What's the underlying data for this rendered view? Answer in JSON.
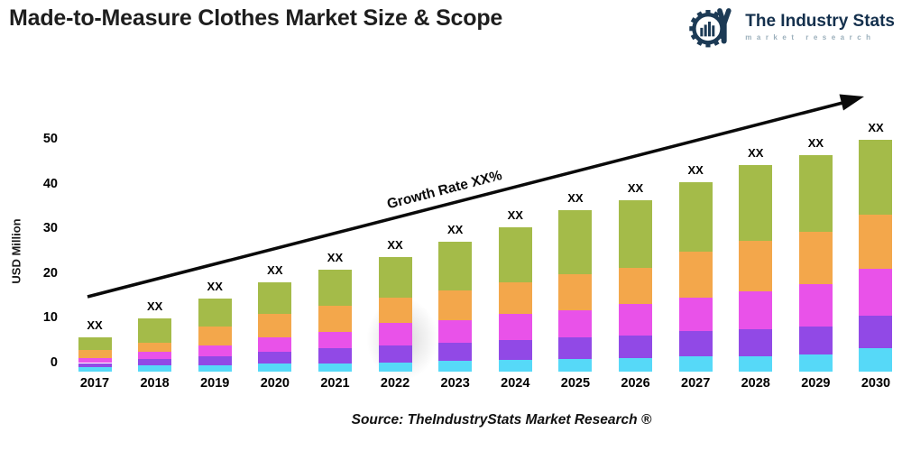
{
  "header": {
    "title": "Made-to-Measure Clothes Market Size & Scope"
  },
  "logo": {
    "name": "The Industry Stats",
    "tagline": "market research",
    "brand_color": "#1c3a55",
    "tagline_color": "#9cb0bc"
  },
  "chart_data": {
    "type": "bar",
    "stacked": true,
    "title": "Made-to-Measure Clothes Market Size & Scope",
    "ylabel": "USD Million",
    "yticks": [
      0,
      10,
      20,
      30,
      40,
      50
    ],
    "ylim": [
      -2,
      53
    ],
    "grid": false,
    "legend": "none",
    "categories": [
      "2017",
      "2018",
      "2019",
      "2020",
      "2021",
      "2022",
      "2023",
      "2024",
      "2025",
      "2026",
      "2027",
      "2028",
      "2029",
      "2030"
    ],
    "bar_labels": [
      "XX",
      "XX",
      "XX",
      "XX",
      "XX",
      "XX",
      "XX",
      "XX",
      "XX",
      "XX",
      "XX",
      "XX",
      "XX",
      "XX"
    ],
    "bar_base": -1.8,
    "bar_tops_usd_million": [
      5.8,
      10.0,
      14.5,
      18.1,
      21.0,
      23.8,
      27.2,
      30.4,
      34.3,
      36.5,
      40.5,
      44.4,
      46.6,
      50.0
    ],
    "series": [
      {
        "name": "segment-1-bottom",
        "color": "#56d9f8",
        "values": [
          1.0,
          1.4,
          1.3,
          1.8,
          1.8,
          2.0,
          2.4,
          2.6,
          2.9,
          3.0,
          3.4,
          3.4,
          3.8,
          5.2
        ]
      },
      {
        "name": "segment-2",
        "color": "#9149e6",
        "values": [
          0.9,
          1.5,
          2.1,
          2.6,
          3.4,
          3.8,
          4.0,
          4.4,
          4.7,
          5.1,
          5.7,
          6.1,
          6.3,
          7.3
        ]
      },
      {
        "name": "segment-3",
        "color": "#e952e9",
        "values": [
          1.2,
          1.6,
          2.4,
          3.2,
          3.7,
          5.1,
          5.1,
          5.9,
          6.1,
          7.0,
          7.4,
          8.4,
          9.4,
          10.5
        ]
      },
      {
        "name": "segment-4",
        "color": "#f3a74b",
        "values": [
          1.8,
          1.9,
          4.3,
          5.3,
          5.8,
          5.6,
          6.6,
          7.0,
          8.1,
          8.1,
          10.3,
          11.3,
          11.7,
          12.1
        ]
      },
      {
        "name": "segment-5-top",
        "color": "#a4bb49",
        "values": [
          2.7,
          5.4,
          6.2,
          7.0,
          8.1,
          9.1,
          10.9,
          12.3,
          14.3,
          15.1,
          15.5,
          17.0,
          17.2,
          16.7
        ]
      }
    ],
    "annotation": {
      "text": "Growth Rate XX%"
    }
  },
  "source": {
    "text": "Source: TheIndustryStats Market Research ®"
  }
}
